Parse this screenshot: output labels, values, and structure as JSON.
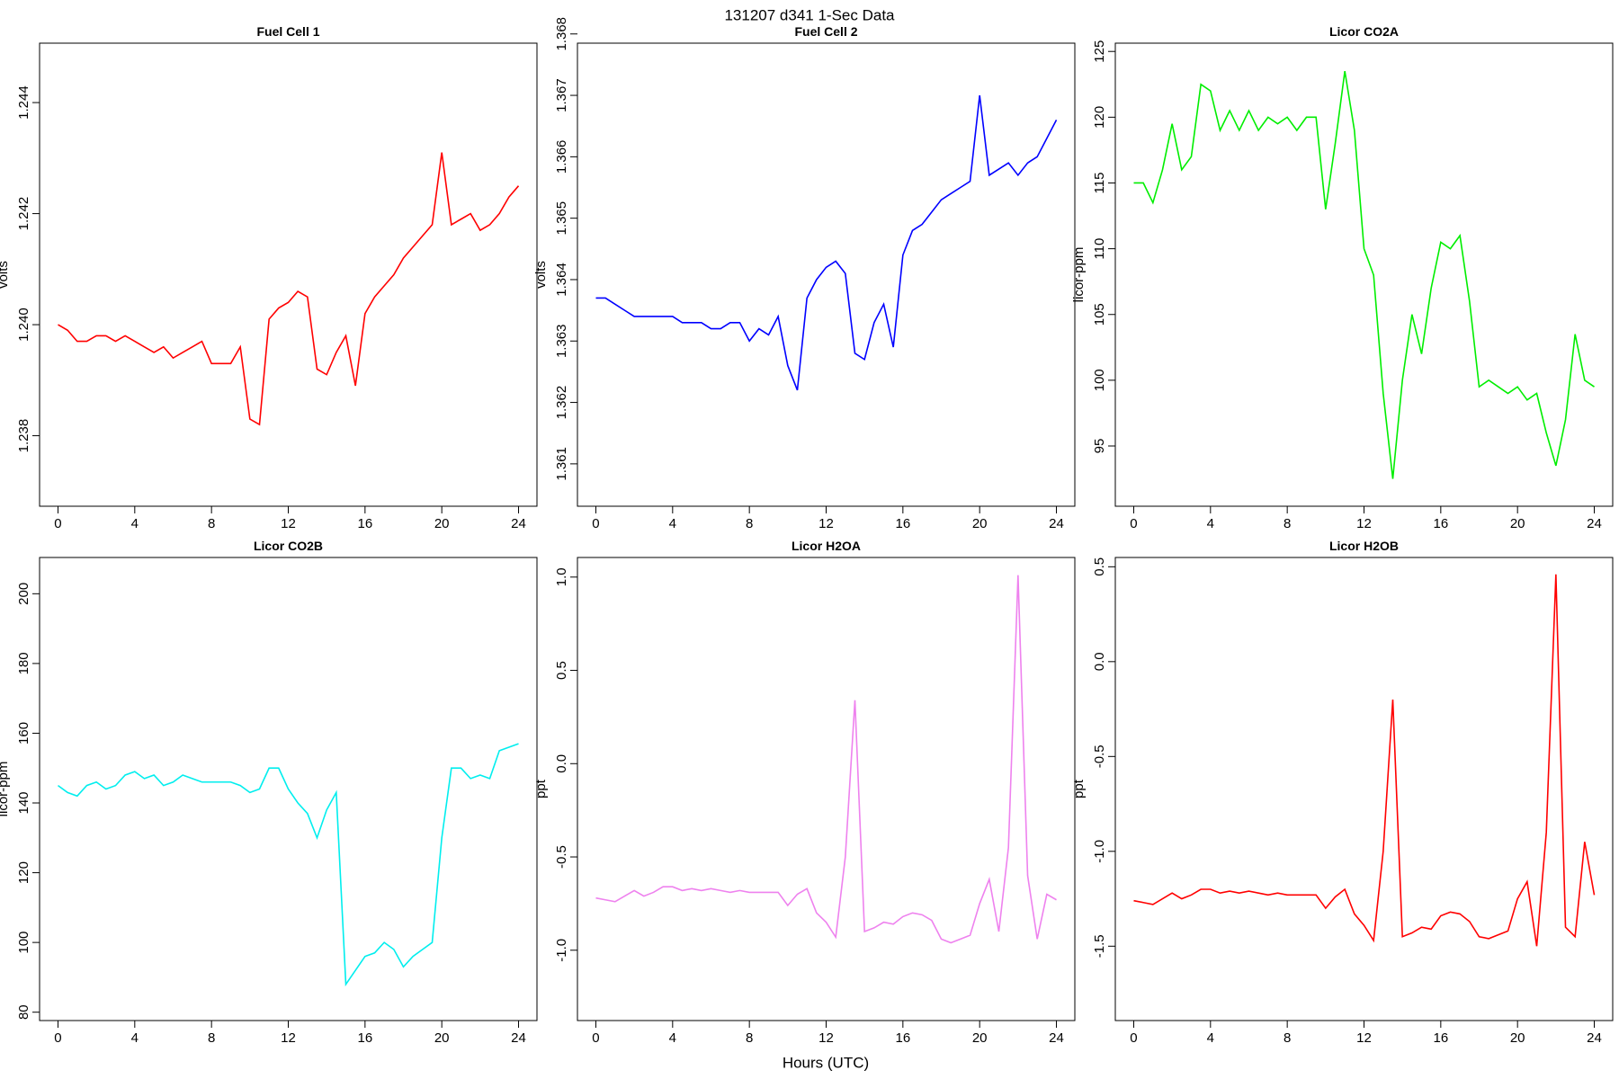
{
  "title": "131207   d341   1-Sec Data",
  "xlabel": "Hours (UTC)",
  "chart_data": [
    {
      "type": "line",
      "title": "Fuel Cell 1",
      "ylabel": "volts",
      "color": "#ff0000",
      "xlim": [
        -0.96,
        24.96
      ],
      "xticks": [
        0,
        4,
        8,
        12,
        16,
        20,
        24
      ],
      "ylim": [
        1.23673,
        1.24507
      ],
      "yticks": [
        1.238,
        {
          "value": 1.24,
          "label": "1.240"
        },
        1.242,
        1.244
      ],
      "x": [
        0,
        0.5,
        1,
        1.5,
        2,
        2.5,
        3,
        3.5,
        4,
        4.5,
        5,
        5.5,
        6,
        6.5,
        7,
        7.5,
        8,
        8.5,
        9,
        9.5,
        10,
        10.5,
        11,
        11.5,
        12,
        12.5,
        13,
        13.5,
        14,
        14.5,
        15,
        15.5,
        16,
        16.5,
        17,
        17.5,
        18,
        18.5,
        19,
        19.5,
        20,
        20.5,
        21,
        21.5,
        22,
        22.5,
        23,
        23.5,
        24
      ],
      "values": [
        1.24,
        1.2399,
        1.2397,
        1.2397,
        1.2398,
        1.2398,
        1.2397,
        1.2398,
        1.2397,
        1.2396,
        1.2395,
        1.2396,
        1.2394,
        1.2395,
        1.2396,
        1.2397,
        1.2393,
        1.2393,
        1.2393,
        1.2396,
        1.2383,
        1.2382,
        1.2401,
        1.2403,
        1.2404,
        1.2406,
        1.2405,
        1.2392,
        1.2391,
        1.2395,
        1.2398,
        1.2389,
        1.2402,
        1.2405,
        1.2407,
        1.2409,
        1.2412,
        1.2414,
        1.2416,
        1.2418,
        1.2431,
        1.2418,
        1.2419,
        1.242,
        1.2417,
        1.2418,
        1.242,
        1.2423,
        1.2425
      ]
    },
    {
      "type": "line",
      "title": "Fuel Cell 2",
      "ylabel": "volts",
      "color": "#0000ff",
      "xlim": [
        -0.96,
        24.96
      ],
      "xticks": [
        0,
        4,
        8,
        12,
        16,
        20,
        24
      ],
      "ylim": [
        1.36031,
        1.36785
      ],
      "yticks": [
        1.361,
        1.362,
        1.363,
        1.364,
        1.365,
        1.366,
        1.367,
        1.368
      ],
      "x": [
        0,
        0.5,
        1,
        1.5,
        2,
        2.5,
        3,
        3.5,
        4,
        4.5,
        5,
        5.5,
        6,
        6.5,
        7,
        7.5,
        8,
        8.5,
        9,
        9.5,
        10,
        10.5,
        11,
        11.5,
        12,
        12.5,
        13,
        13.5,
        14,
        14.5,
        15,
        15.5,
        16,
        16.5,
        17,
        17.5,
        18,
        18.5,
        19,
        19.5,
        20,
        20.5,
        21,
        21.5,
        22,
        22.5,
        23,
        23.5,
        24
      ],
      "values": [
        1.3637,
        1.3637,
        1.3636,
        1.3635,
        1.3634,
        1.3634,
        1.3634,
        1.3634,
        1.3634,
        1.3633,
        1.3633,
        1.3633,
        1.3632,
        1.3632,
        1.3633,
        1.3633,
        1.363,
        1.3632,
        1.3631,
        1.3634,
        1.3626,
        1.3622,
        1.3637,
        1.364,
        1.3642,
        1.3643,
        1.3641,
        1.3628,
        1.3627,
        1.3633,
        1.3636,
        1.3629,
        1.3644,
        1.3648,
        1.3649,
        1.3651,
        1.3653,
        1.3654,
        1.3655,
        1.3656,
        1.367,
        1.3657,
        1.3658,
        1.3659,
        1.3657,
        1.3659,
        1.366,
        1.3663,
        1.3666
      ]
    },
    {
      "type": "line",
      "title": "Licor CO2A",
      "ylabel": "licor-ppm",
      "color": "#00ee00",
      "xlim": [
        -0.96,
        24.96
      ],
      "xticks": [
        0,
        4,
        8,
        12,
        16,
        20,
        24
      ],
      "ylim": [
        90.42,
        125.63
      ],
      "yticks": [
        95,
        100,
        105,
        110,
        115,
        120,
        125
      ],
      "x": [
        0,
        0.5,
        1,
        1.5,
        2,
        2.5,
        3,
        3.5,
        4,
        4.5,
        5,
        5.5,
        6,
        6.5,
        7,
        7.5,
        8,
        8.5,
        9,
        9.5,
        10,
        10.5,
        11,
        11.5,
        12,
        12.5,
        13,
        13.5,
        14,
        14.5,
        15,
        15.5,
        16,
        16.5,
        17,
        17.5,
        18,
        18.5,
        19,
        19.5,
        20,
        20.5,
        21,
        21.5,
        22,
        22.5,
        23,
        23.5,
        24
      ],
      "values": [
        115,
        115,
        113.5,
        116,
        119.5,
        116,
        117,
        122.5,
        122,
        119,
        120.5,
        119,
        120.5,
        119,
        120,
        119.5,
        120,
        119,
        120,
        120,
        113,
        118,
        123.5,
        119,
        110,
        108,
        99,
        92.5,
        100,
        105,
        102,
        107,
        110.5,
        110,
        111,
        106,
        99.5,
        100,
        99.5,
        99,
        99.5,
        98.5,
        99,
        96,
        93.5,
        97,
        103.5,
        100,
        99.5
      ]
    },
    {
      "type": "line",
      "title": "Licor CO2B",
      "ylabel": "licor-ppm",
      "color": "#00eeee",
      "xlim": [
        -0.96,
        24.96
      ],
      "xticks": [
        0,
        4,
        8,
        12,
        16,
        20,
        24
      ],
      "ylim": [
        77.6,
        210.4
      ],
      "yticks": [
        80,
        100,
        120,
        140,
        160,
        180,
        200
      ],
      "x": [
        0,
        0.5,
        1,
        1.5,
        2,
        2.5,
        3,
        3.5,
        4,
        4.5,
        5,
        5.5,
        6,
        6.5,
        7,
        7.5,
        8,
        8.5,
        9,
        9.5,
        10,
        10.5,
        11,
        11.5,
        12,
        12.5,
        13,
        13.5,
        14,
        14.5,
        15,
        15.5,
        16,
        16.5,
        17,
        17.5,
        18,
        18.5,
        19,
        19.5,
        20,
        20.5,
        21,
        21.5,
        22,
        22.5,
        23,
        23.5,
        24
      ],
      "values": [
        145,
        143,
        142,
        145,
        146,
        144,
        145,
        148,
        149,
        147,
        148,
        145,
        146,
        148,
        147,
        146,
        146,
        146,
        146,
        145,
        143,
        144,
        150,
        150,
        144,
        140,
        137,
        130,
        138,
        143,
        88,
        92,
        96,
        97,
        100,
        98,
        93,
        96,
        98,
        100,
        130,
        150,
        150,
        147,
        148,
        147,
        155,
        156,
        157
      ]
    },
    {
      "type": "line",
      "title": "Licor H2OA",
      "ylabel": "ppt",
      "color": "#ee82ee",
      "xlim": [
        -0.96,
        24.96
      ],
      "xticks": [
        0,
        4,
        8,
        12,
        16,
        20,
        24
      ],
      "ylim": [
        -1.377,
        1.105
      ],
      "yticks": [
        {
          "value": -1,
          "label": "-1.0"
        },
        -0.5,
        {
          "value": 0,
          "label": "0.0"
        },
        0.5,
        {
          "value": 1,
          "label": "1.0"
        }
      ],
      "x": [
        0,
        0.5,
        1,
        1.5,
        2,
        2.5,
        3,
        3.5,
        4,
        4.5,
        5,
        5.5,
        6,
        6.5,
        7,
        7.5,
        8,
        8.5,
        9,
        9.5,
        10,
        10.5,
        11,
        11.5,
        12,
        12.5,
        13,
        13.5,
        14,
        14.5,
        15,
        15.5,
        16,
        16.5,
        17,
        17.5,
        18,
        18.5,
        19,
        19.5,
        20,
        20.5,
        21,
        21.5,
        22,
        22.5,
        23,
        23.5,
        24
      ],
      "values": [
        -0.72,
        -0.73,
        -0.74,
        -0.71,
        -0.68,
        -0.71,
        -0.69,
        -0.66,
        -0.66,
        -0.68,
        -0.67,
        -0.68,
        -0.67,
        -0.68,
        -0.69,
        -0.68,
        -0.69,
        -0.69,
        -0.69,
        -0.69,
        -0.76,
        -0.7,
        -0.67,
        -0.8,
        -0.85,
        -0.93,
        -0.5,
        0.34,
        -0.9,
        -0.88,
        -0.85,
        -0.86,
        -0.82,
        -0.8,
        -0.81,
        -0.84,
        -0.94,
        -0.96,
        -0.94,
        -0.92,
        -0.75,
        -0.62,
        -0.9,
        -0.45,
        1.01,
        -0.6,
        -0.94,
        -0.7,
        -0.73
      ]
    },
    {
      "type": "line",
      "title": "Licor H2OB",
      "ylabel": "ppt",
      "color": "#ff0000",
      "xlim": [
        -0.96,
        24.96
      ],
      "xticks": [
        0,
        4,
        8,
        12,
        16,
        20,
        24
      ],
      "ylim": [
        -1.892,
        0.549
      ],
      "yticks": [
        -1.5,
        {
          "value": -1,
          "label": "-1.0"
        },
        -0.5,
        {
          "value": 0,
          "label": "0.0"
        },
        0.5
      ],
      "x": [
        0,
        0.5,
        1,
        1.5,
        2,
        2.5,
        3,
        3.5,
        4,
        4.5,
        5,
        5.5,
        6,
        6.5,
        7,
        7.5,
        8,
        8.5,
        9,
        9.5,
        10,
        10.5,
        11,
        11.5,
        12,
        12.5,
        13,
        13.5,
        14,
        14.5,
        15,
        15.5,
        16,
        16.5,
        17,
        17.5,
        18,
        18.5,
        19,
        19.5,
        20,
        20.5,
        21,
        21.5,
        22,
        22.5,
        23,
        23.5,
        24
      ],
      "values": [
        -1.26,
        -1.27,
        -1.28,
        -1.25,
        -1.22,
        -1.25,
        -1.23,
        -1.2,
        -1.2,
        -1.22,
        -1.21,
        -1.22,
        -1.21,
        -1.22,
        -1.23,
        -1.22,
        -1.23,
        -1.23,
        -1.23,
        -1.23,
        -1.3,
        -1.24,
        -1.2,
        -1.33,
        -1.39,
        -1.47,
        -1.0,
        -0.2,
        -1.45,
        -1.43,
        -1.4,
        -1.41,
        -1.34,
        -1.32,
        -1.33,
        -1.37,
        -1.45,
        -1.46,
        -1.44,
        -1.42,
        -1.25,
        -1.16,
        -1.5,
        -0.9,
        0.46,
        -1.4,
        -1.45,
        -0.95,
        -1.23
      ]
    }
  ]
}
